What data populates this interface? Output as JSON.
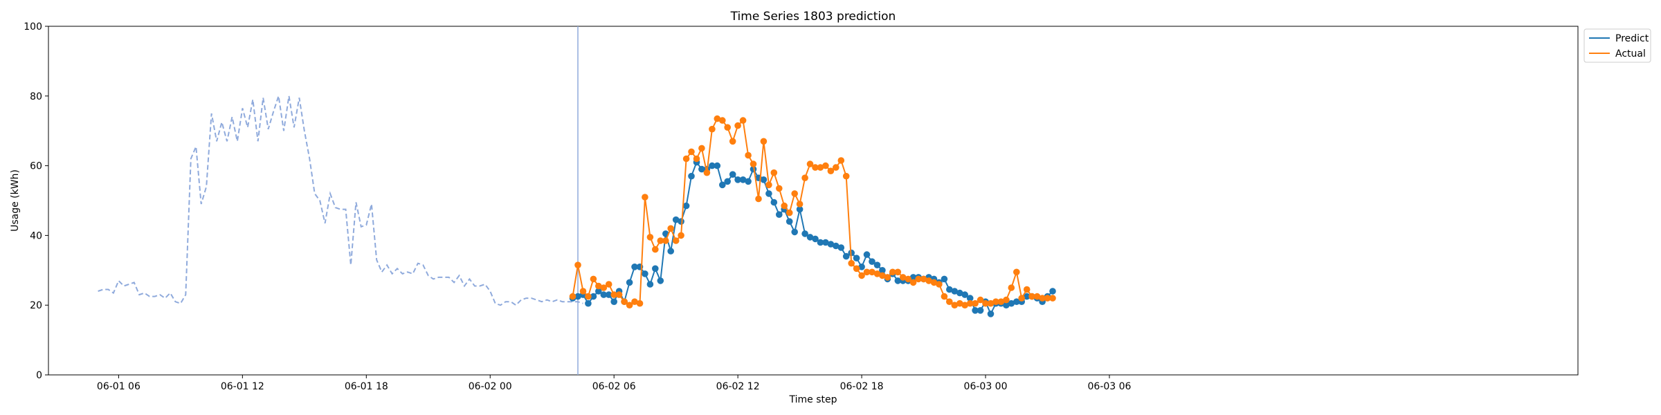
{
  "chart_data": {
    "type": "line",
    "title": "Time Series 1803 prediction",
    "xlabel": "Time step",
    "ylabel": "Usage (kWh)",
    "ylim": [
      0,
      100
    ],
    "yticks": [
      0,
      20,
      40,
      60,
      80,
      100
    ],
    "xlim": [
      2.6,
      76.7
    ],
    "xticks": [
      {
        "value": 6,
        "label": "06-01 06"
      },
      {
        "value": 12,
        "label": "06-01 12"
      },
      {
        "value": 18,
        "label": "06-01 18"
      },
      {
        "value": 24,
        "label": "06-02 00"
      },
      {
        "value": 30,
        "label": "06-02 06"
      },
      {
        "value": 36,
        "label": "06-02 12"
      },
      {
        "value": 42,
        "label": "06-02 18"
      },
      {
        "value": 48,
        "label": "06-03 00"
      },
      {
        "value": 54,
        "label": "06-03 06"
      }
    ],
    "x_units": "hours since 06-01 00:00",
    "step_hours": 0.25,
    "vline_x": 28.25,
    "legend": {
      "position": "top-right",
      "entries": [
        "Predict",
        "Actual"
      ]
    },
    "colors": {
      "history": "#8faadc",
      "predict": "#1f77b4",
      "actual": "#ff7f0e",
      "vline": "#8faadc"
    },
    "history": {
      "x_start": 5.0,
      "values": [
        24.0,
        24.5,
        24.5,
        23.5,
        27.0,
        25.5,
        26.0,
        26.5,
        23.0,
        23.5,
        22.5,
        22.5,
        23.0,
        22.0,
        23.5,
        21.0,
        20.5,
        23.0,
        62.0,
        65.5,
        49.0,
        54.0,
        75.0,
        67.0,
        72.5,
        67.0,
        74.0,
        67.0,
        76.5,
        71.0,
        79.0,
        67.0,
        79.5,
        70.5,
        75.5,
        80.0,
        70.0,
        80.0,
        71.0,
        79.5,
        70.0,
        62.0,
        52.0,
        50.0,
        43.5,
        52.0,
        48.0,
        47.5,
        47.5,
        31.5,
        49.5,
        42.5,
        43.0,
        49.0,
        33.0,
        29.5,
        31.5,
        29.0,
        30.5,
        29.0,
        29.5,
        29.0,
        32.0,
        31.5,
        28.5,
        27.5,
        28.0,
        28.0,
        28.0,
        26.5,
        28.5,
        25.5,
        27.5,
        25.5,
        25.5,
        26.0,
        24.0,
        20.5,
        20.0,
        21.0,
        21.0,
        20.0,
        21.5,
        22.0,
        22.0,
        21.5,
        21.0,
        21.5,
        21.0,
        21.5,
        21.0,
        21.0,
        21.0,
        21.0,
        20.5
      ]
    },
    "series": [
      {
        "name": "Predict",
        "x_start": 28.0,
        "values": [
          22.0,
          22.5,
          23.0,
          20.5,
          22.5,
          24.0,
          23.0,
          23.0,
          21.0,
          24.0,
          21.0,
          26.5,
          31.0,
          31.0,
          29.0,
          26.0,
          30.5,
          27.0,
          40.5,
          35.5,
          44.5,
          44.0,
          48.5,
          57.0,
          61.0,
          59.0,
          59.0,
          60.0,
          60.0,
          54.5,
          55.5,
          57.5,
          56.0,
          56.0,
          55.5,
          59.0,
          56.5,
          56.0,
          52.0,
          49.5,
          46.0,
          47.5,
          44.0,
          41.0,
          47.5,
          40.5,
          39.5,
          39.0,
          38.0,
          38.0,
          37.5,
          37.0,
          36.5,
          34.0,
          35.0,
          33.5,
          31.0,
          34.5,
          32.5,
          31.5,
          30.0,
          27.5,
          29.0,
          27.0,
          27.0,
          27.0,
          28.0,
          28.0,
          27.5,
          28.0,
          27.5,
          26.5,
          27.5,
          24.5,
          24.0,
          23.5,
          23.0,
          22.0,
          18.5,
          18.5,
          21.0,
          17.5,
          20.5,
          20.5,
          20.0,
          20.5,
          21.0,
          21.0,
          22.5,
          22.5,
          22.0,
          21.0,
          22.5,
          24.0
        ]
      },
      {
        "name": "Actual",
        "x_start": 28.0,
        "values": [
          22.5,
          31.5,
          24.0,
          22.5,
          27.5,
          25.5,
          25.0,
          26.0,
          23.0,
          23.0,
          21.0,
          20.0,
          21.0,
          20.5,
          51.0,
          39.5,
          36.0,
          38.5,
          38.5,
          42.0,
          38.5,
          40.0,
          62.0,
          64.0,
          62.0,
          65.0,
          58.0,
          70.5,
          73.5,
          73.0,
          71.0,
          67.0,
          71.5,
          73.0,
          63.0,
          60.5,
          50.5,
          67.0,
          54.5,
          58.0,
          53.5,
          48.5,
          46.5,
          52.0,
          49.0,
          56.5,
          60.5,
          59.5,
          59.5,
          60.0,
          58.5,
          59.5,
          61.5,
          57.0,
          32.0,
          30.5,
          28.5,
          29.5,
          29.5,
          29.0,
          28.5,
          28.0,
          29.5,
          29.5,
          28.0,
          27.5,
          26.5,
          27.5,
          27.5,
          27.0,
          26.5,
          26.0,
          22.5,
          21.0,
          20.0,
          20.5,
          20.0,
          20.5,
          20.5,
          21.5,
          20.5,
          20.5,
          21.0,
          21.0,
          21.5,
          25.0,
          29.5,
          22.0,
          24.5,
          22.5,
          22.5,
          22.0,
          22.0,
          22.0
        ]
      }
    ]
  }
}
